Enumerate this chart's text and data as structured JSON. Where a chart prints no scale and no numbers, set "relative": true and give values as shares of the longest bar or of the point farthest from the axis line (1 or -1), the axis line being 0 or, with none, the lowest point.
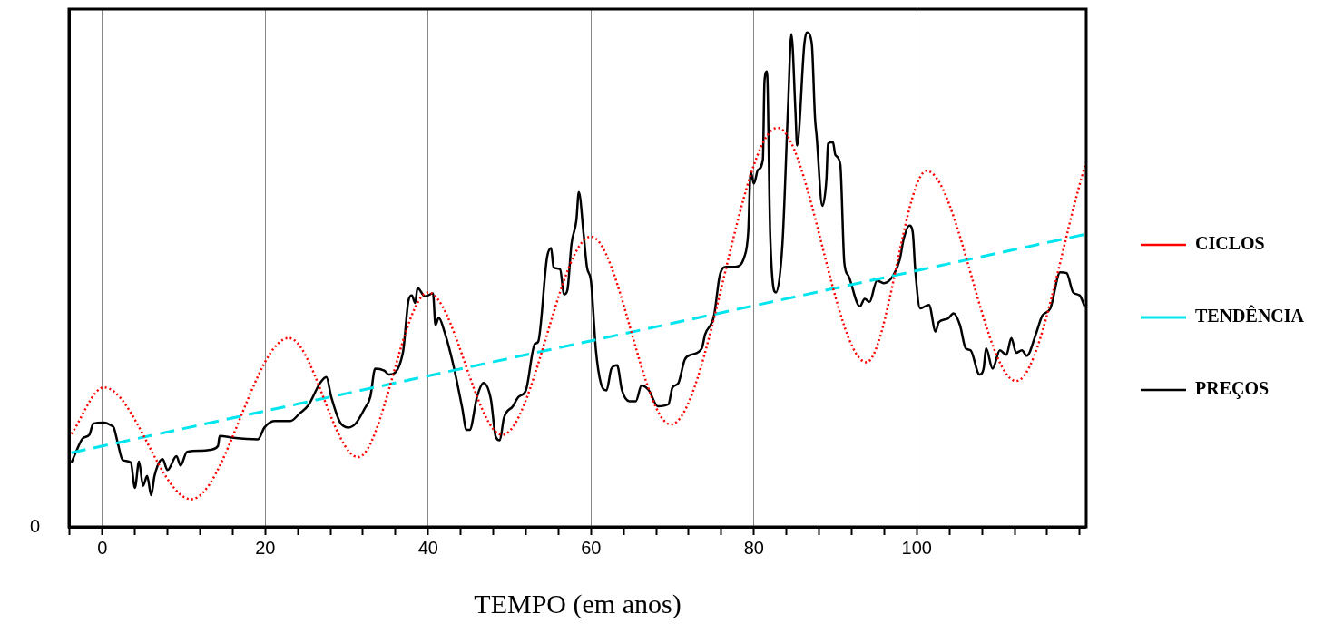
{
  "chart_data": {
    "type": "line",
    "relative": true,
    "xlabel": "TEMPO (em anos)",
    "xlim": [
      -4.1,
      120.8
    ],
    "xticks": [
      {
        "value": -4,
        "label": null
      },
      0,
      {
        "value": 4,
        "label": null
      },
      {
        "value": 8,
        "label": null
      },
      {
        "value": 12,
        "label": null
      },
      {
        "value": 16,
        "label": null
      },
      20,
      {
        "value": 24,
        "label": null
      },
      {
        "value": 28,
        "label": null
      },
      {
        "value": 32,
        "label": null
      },
      {
        "value": 36,
        "label": null
      },
      40,
      {
        "value": 44,
        "label": null
      },
      {
        "value": 48,
        "label": null
      },
      {
        "value": 52,
        "label": null
      },
      {
        "value": 56,
        "label": null
      },
      60,
      {
        "value": 64,
        "label": null
      },
      {
        "value": 68,
        "label": null
      },
      {
        "value": 72,
        "label": null
      },
      {
        "value": 76,
        "label": null
      },
      80,
      {
        "value": 84,
        "label": null
      },
      {
        "value": 88,
        "label": null
      },
      {
        "value": 92,
        "label": null
      },
      {
        "value": 96,
        "label": null
      },
      100,
      {
        "value": 104,
        "label": null
      },
      {
        "value": 108,
        "label": null
      },
      {
        "value": 112,
        "label": null
      },
      {
        "value": 116,
        "label": null
      },
      {
        "value": 120,
        "label": null
      }
    ],
    "grid": "x",
    "legend": "right",
    "annotations": [
      "0"
    ],
    "series": [
      {
        "name": "CICLOS",
        "color": "#ff0000",
        "line_style": "dotted",
        "x": [
          -3.8,
          0.2,
          10.9,
          22.9,
          31.4,
          40.0,
          49.1,
          60.0,
          69.8,
          82.9,
          93.8,
          101.2,
          112.2,
          120.8
        ],
        "values": [
          0.188,
          0.282,
          0.056,
          0.382,
          0.141,
          0.474,
          0.186,
          0.587,
          0.207,
          0.807,
          0.333,
          0.72,
          0.295,
          0.737
        ]
      },
      {
        "name": "TENDÊNCIA",
        "color": "#00e5ee",
        "line_style": "dashed",
        "x": [
          -3.8,
          120.8
        ],
        "values": [
          0.15,
          0.592
        ]
      },
      {
        "name": "PREÇOS",
        "color": "#000000",
        "line_style": "solid",
        "x": [
          -3.8,
          -3.3,
          -2.4,
          -1.6,
          -1.1,
          0.2,
          1.1,
          1.4,
          1.9,
          2.5,
          3.5,
          4.0,
          4.5,
          5.0,
          5.5,
          6.0,
          6.4,
          7.4,
          8.0,
          9.1,
          9.6,
          10.4,
          12.2,
          13.3,
          14.2,
          14.4,
          16.1,
          19.1,
          19.9,
          21.1,
          23.1,
          24.2,
          25.3,
          26.7,
          27.5,
          28.1,
          29.2,
          30.2,
          31.1,
          32.2,
          32.9,
          33.5,
          34.6,
          35.2,
          36.9,
          37.6,
          38.0,
          38.4,
          38.7,
          39.6,
          40.6,
          40.9,
          41.3,
          42.0,
          43.1,
          44.2,
          44.7,
          45.1,
          46.0,
          46.8,
          47.7,
          48.3,
          48.8,
          49.3,
          50.4,
          51.1,
          52.0,
          53.1,
          53.5,
          54.6,
          55.1,
          55.4,
          56.2,
          56.7,
          57.1,
          57.6,
          58.2,
          58.5,
          59.1,
          59.5,
          60.0,
          60.6,
          61.2,
          61.9,
          62.5,
          63.2,
          63.8,
          64.7,
          65.5,
          66.2,
          67.1,
          68.2,
          69.5,
          70.0,
          70.7,
          71.5,
          72.3,
          73.6,
          74.0,
          75.1,
          75.8,
          76.6,
          77.7,
          78.8,
          79.3,
          79.6,
          80.0,
          80.5,
          81.1,
          81.3,
          81.6,
          82.0,
          82.7,
          83.5,
          84.2,
          84.6,
          85.1,
          85.3,
          86.2,
          86.5,
          87.1,
          87.5,
          87.7,
          88.4,
          88.9,
          89.1,
          89.7,
          90.0,
          90.6,
          91.1,
          91.6,
          93.0,
          93.6,
          94.2,
          95.1,
          96.0,
          97.1,
          97.9,
          98.4,
          99.1,
          99.5,
          99.8,
          100.4,
          101.5,
          102.3,
          102.7,
          103.8,
          104.5,
          105.3,
          106.0,
          106.6,
          107.7,
          108.2,
          108.5,
          109.3,
          110.2,
          111.0,
          111.6,
          112.2,
          112.9,
          113.5,
          114.6,
          115.4,
          116.4,
          117.6,
          118.4,
          119.2,
          120.0,
          120.6
        ],
        "values": [
          0.13,
          0.149,
          0.179,
          0.186,
          0.209,
          0.211,
          0.205,
          0.201,
          0.169,
          0.135,
          0.13,
          0.079,
          0.132,
          0.083,
          0.103,
          0.064,
          0.103,
          0.137,
          0.115,
          0.143,
          0.124,
          0.152,
          0.154,
          0.156,
          0.164,
          0.184,
          0.18,
          0.177,
          0.201,
          0.214,
          0.214,
          0.229,
          0.246,
          0.29,
          0.303,
          0.263,
          0.211,
          0.201,
          0.209,
          0.239,
          0.263,
          0.32,
          0.316,
          0.308,
          0.352,
          0.459,
          0.468,
          0.453,
          0.483,
          0.466,
          0.472,
          0.408,
          0.423,
          0.395,
          0.327,
          0.239,
          0.196,
          0.196,
          0.263,
          0.291,
          0.258,
          0.182,
          0.175,
          0.22,
          0.244,
          0.263,
          0.276,
          0.37,
          0.374,
          0.545,
          0.564,
          0.525,
          0.521,
          0.47,
          0.479,
          0.572,
          0.62,
          0.677,
          0.59,
          0.525,
          0.496,
          0.357,
          0.291,
          0.276,
          0.32,
          0.327,
          0.276,
          0.254,
          0.254,
          0.286,
          0.276,
          0.244,
          0.248,
          0.282,
          0.29,
          0.338,
          0.348,
          0.361,
          0.389,
          0.427,
          0.508,
          0.526,
          0.526,
          0.545,
          0.596,
          0.718,
          0.694,
          0.722,
          0.743,
          0.902,
          0.921,
          0.59,
          0.474,
          0.572,
          0.854,
          0.996,
          0.84,
          0.771,
          0.978,
          1,
          0.978,
          0.827,
          0.79,
          0.649,
          0.703,
          0.775,
          0.778,
          0.752,
          0.733,
          0.534,
          0.508,
          0.446,
          0.461,
          0.455,
          0.498,
          0.493,
          0.508,
          0.54,
          0.583,
          0.609,
          0.596,
          0.521,
          0.442,
          0.449,
          0.395,
          0.414,
          0.421,
          0.432,
          0.408,
          0.361,
          0.357,
          0.308,
          0.32,
          0.361,
          0.32,
          0.357,
          0.348,
          0.382,
          0.352,
          0.357,
          0.346,
          0.389,
          0.427,
          0.442,
          0.515,
          0.513,
          0.474,
          0.468,
          0.446
        ]
      }
    ]
  }
}
